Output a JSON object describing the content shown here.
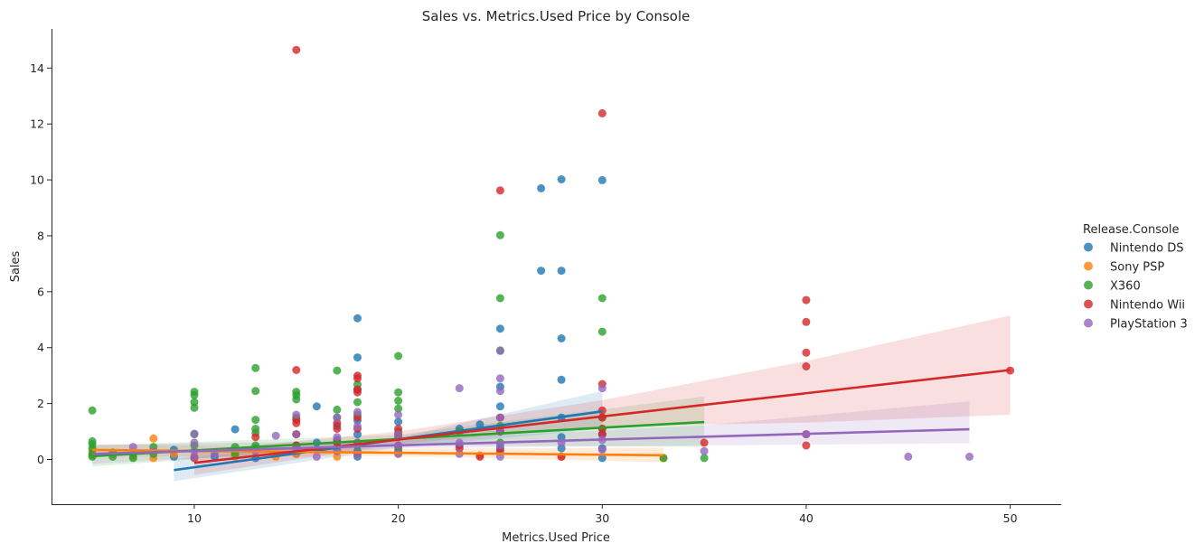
{
  "chart_data": {
    "type": "scatter",
    "title": "Sales vs. Metrics.Used Price by Console",
    "xlabel": "Metrics.Used Price",
    "ylabel": "Sales",
    "xlim": [
      3,
      52.5
    ],
    "ylim": [
      -1.6,
      15.4
    ],
    "xticks": [
      10,
      20,
      30,
      40,
      50
    ],
    "yticks": [
      0,
      2,
      4,
      6,
      8,
      10,
      12,
      14
    ],
    "grid": false,
    "legend": {
      "title": "Release.Console",
      "position": "right"
    },
    "series": [
      {
        "name": "Nintendo DS",
        "color": "#1f77b4",
        "points": [
          [
            9,
            0.35
          ],
          [
            9,
            0.1
          ],
          [
            11,
            0.1
          ],
          [
            12,
            1.08
          ],
          [
            12,
            0.3
          ],
          [
            13,
            0.05
          ],
          [
            13,
            0.4
          ],
          [
            15,
            0.2
          ],
          [
            15,
            0.5
          ],
          [
            16,
            1.9
          ],
          [
            16,
            0.6
          ],
          [
            17,
            0.3
          ],
          [
            17,
            0.7
          ],
          [
            17,
            1.2
          ],
          [
            18,
            5.05
          ],
          [
            18,
            3.65
          ],
          [
            18,
            2.5
          ],
          [
            18,
            1.4
          ],
          [
            18,
            0.9
          ],
          [
            18,
            0.3
          ],
          [
            18,
            0.1
          ],
          [
            20,
            1.35
          ],
          [
            20,
            0.8
          ],
          [
            20,
            0.3
          ],
          [
            23,
            1.1
          ],
          [
            23,
            0.5
          ],
          [
            24,
            1.25
          ],
          [
            25,
            4.68
          ],
          [
            25,
            2.6
          ],
          [
            25,
            1.9
          ],
          [
            25,
            1.0
          ],
          [
            25,
            0.4
          ],
          [
            27,
            9.7
          ],
          [
            27,
            6.75
          ],
          [
            28,
            10.02
          ],
          [
            28,
            6.75
          ],
          [
            28,
            4.33
          ],
          [
            28,
            2.85
          ],
          [
            28,
            1.5
          ],
          [
            28,
            0.8
          ],
          [
            28,
            0.4
          ],
          [
            30,
            9.99
          ],
          [
            30,
            0.9
          ],
          [
            30,
            0.4
          ],
          [
            30,
            0.05
          ]
        ],
        "fit": {
          "x": [
            9,
            30
          ],
          "y": [
            -0.38,
            1.72
          ]
        },
        "ci_band": {
          "x": [
            9,
            20,
            30
          ],
          "lower": [
            -0.78,
            0.42,
            1.1
          ],
          "upper": [
            0.02,
            0.78,
            2.45
          ]
        }
      },
      {
        "name": "Sony PSP",
        "color": "#ff7f0e",
        "points": [
          [
            5,
            0.3
          ],
          [
            5,
            0.15
          ],
          [
            6,
            0.2
          ],
          [
            7,
            0.1
          ],
          [
            8,
            0.75
          ],
          [
            8,
            0.3
          ],
          [
            8,
            0.05
          ],
          [
            9,
            0.2
          ],
          [
            10,
            0.1
          ],
          [
            12,
            0.1
          ],
          [
            14,
            0.1
          ],
          [
            15,
            0.2
          ],
          [
            17,
            0.1
          ],
          [
            20,
            0.2
          ],
          [
            24,
            0.15
          ],
          [
            28,
            0.1
          ],
          [
            33,
            0.05
          ]
        ],
        "fit": {
          "x": [
            5,
            33
          ],
          "y": [
            0.34,
            0.15
          ]
        },
        "ci_band": {
          "x": [
            5,
            20,
            33
          ],
          "lower": [
            0.1,
            0.12,
            -0.1
          ],
          "upper": [
            0.55,
            0.38,
            0.42
          ]
        }
      },
      {
        "name": "X360",
        "color": "#2ca02c",
        "points": [
          [
            5,
            1.75
          ],
          [
            5,
            0.65
          ],
          [
            5,
            0.55
          ],
          [
            5,
            0.4
          ],
          [
            5,
            0.2
          ],
          [
            5,
            0.1
          ],
          [
            6,
            0.25
          ],
          [
            6,
            0.1
          ],
          [
            7,
            0.05
          ],
          [
            7,
            0.2
          ],
          [
            8,
            0.45
          ],
          [
            8,
            0.2
          ],
          [
            10,
            2.42
          ],
          [
            10,
            2.3
          ],
          [
            10,
            2.05
          ],
          [
            10,
            1.85
          ],
          [
            10,
            0.9
          ],
          [
            10,
            0.5
          ],
          [
            12,
            0.45
          ],
          [
            12,
            0.2
          ],
          [
            13,
            3.27
          ],
          [
            13,
            2.45
          ],
          [
            13,
            1.42
          ],
          [
            13,
            1.1
          ],
          [
            13,
            0.95
          ],
          [
            13,
            0.5
          ],
          [
            15,
            2.42
          ],
          [
            15,
            2.3
          ],
          [
            15,
            2.15
          ],
          [
            15,
            1.5
          ],
          [
            15,
            0.9
          ],
          [
            17,
            3.18
          ],
          [
            17,
            1.78
          ],
          [
            17,
            1.5
          ],
          [
            17,
            0.6
          ],
          [
            18,
            2.68
          ],
          [
            18,
            2.05
          ],
          [
            18,
            1.6
          ],
          [
            18,
            0.5
          ],
          [
            20,
            3.7
          ],
          [
            20,
            2.4
          ],
          [
            20,
            2.1
          ],
          [
            20,
            1.82
          ],
          [
            20,
            1.0
          ],
          [
            20,
            0.4
          ],
          [
            23,
            1.0
          ],
          [
            25,
            8.02
          ],
          [
            25,
            5.77
          ],
          [
            25,
            3.9
          ],
          [
            25,
            1.2
          ],
          [
            25,
            0.6
          ],
          [
            30,
            5.77
          ],
          [
            30,
            4.57
          ],
          [
            30,
            1.5
          ],
          [
            30,
            1.1
          ],
          [
            33,
            0.05
          ],
          [
            35,
            0.05
          ]
        ],
        "fit": {
          "x": [
            5,
            35
          ],
          "y": [
            0.12,
            1.34
          ]
        },
        "ci_band": {
          "x": [
            5,
            20,
            35
          ],
          "lower": [
            -0.25,
            0.52,
            0.45
          ],
          "upper": [
            0.5,
            0.88,
            2.25
          ]
        }
      },
      {
        "name": "Nintendo Wii",
        "color": "#d62728",
        "points": [
          [
            10,
            0.05
          ],
          [
            13,
            0.8
          ],
          [
            15,
            14.65
          ],
          [
            15,
            3.2
          ],
          [
            15,
            1.42
          ],
          [
            15,
            1.3
          ],
          [
            15,
            0.9
          ],
          [
            15,
            0.5
          ],
          [
            17,
            1.3
          ],
          [
            17,
            1.1
          ],
          [
            17,
            0.6
          ],
          [
            18,
            3.0
          ],
          [
            18,
            2.9
          ],
          [
            18,
            2.5
          ],
          [
            18,
            2.4
          ],
          [
            18,
            1.5
          ],
          [
            18,
            1.1
          ],
          [
            18,
            0.6
          ],
          [
            18,
            0.2
          ],
          [
            20,
            1.1
          ],
          [
            20,
            0.9
          ],
          [
            20,
            0.5
          ],
          [
            23,
            0.4
          ],
          [
            24,
            0.1
          ],
          [
            25,
            9.62
          ],
          [
            25,
            1.5
          ],
          [
            25,
            1.0
          ],
          [
            25,
            0.3
          ],
          [
            28,
            0.1
          ],
          [
            30,
            12.38
          ],
          [
            30,
            2.7
          ],
          [
            30,
            1.75
          ],
          [
            30,
            1.5
          ],
          [
            30,
            1.1
          ],
          [
            30,
            0.9
          ],
          [
            35,
            0.6
          ],
          [
            40,
            5.7
          ],
          [
            40,
            4.92
          ],
          [
            40,
            3.82
          ],
          [
            40,
            3.33
          ],
          [
            40,
            0.9
          ],
          [
            40,
            0.5
          ],
          [
            50,
            3.18
          ]
        ],
        "fit": {
          "x": [
            10,
            50
          ],
          "y": [
            -0.12,
            3.2
          ]
        },
        "ci_band": {
          "x": [
            10,
            20,
            30,
            40,
            50
          ],
          "lower": [
            -0.55,
            0.55,
            1.18,
            1.32,
            1.6
          ],
          "upper": [
            0.3,
            1.0,
            2.12,
            3.52,
            5.15
          ]
        }
      },
      {
        "name": "PlayStation 3",
        "color": "#9467bd",
        "points": [
          [
            7,
            0.45
          ],
          [
            8,
            0.3
          ],
          [
            10,
            0.92
          ],
          [
            10,
            0.6
          ],
          [
            10,
            0.3
          ],
          [
            10,
            0.1
          ],
          [
            11,
            0.2
          ],
          [
            13,
            0.3
          ],
          [
            14,
            0.85
          ],
          [
            15,
            1.6
          ],
          [
            15,
            0.9
          ],
          [
            15,
            0.4
          ],
          [
            16,
            0.1
          ],
          [
            17,
            1.5
          ],
          [
            17,
            0.8
          ],
          [
            17,
            0.3
          ],
          [
            18,
            1.7
          ],
          [
            18,
            1.2
          ],
          [
            18,
            0.6
          ],
          [
            18,
            0.2
          ],
          [
            20,
            1.6
          ],
          [
            20,
            0.9
          ],
          [
            20,
            0.5
          ],
          [
            20,
            0.2
          ],
          [
            23,
            2.55
          ],
          [
            23,
            0.6
          ],
          [
            23,
            0.2
          ],
          [
            25,
            3.88
          ],
          [
            25,
            2.9
          ],
          [
            25,
            2.45
          ],
          [
            25,
            1.5
          ],
          [
            25,
            1.0
          ],
          [
            25,
            0.5
          ],
          [
            25,
            0.1
          ],
          [
            28,
            0.6
          ],
          [
            30,
            2.55
          ],
          [
            30,
            0.7
          ],
          [
            30,
            0.35
          ],
          [
            35,
            0.3
          ],
          [
            40,
            0.9
          ],
          [
            45,
            0.1
          ],
          [
            48,
            0.1
          ]
        ],
        "fit": {
          "x": [
            5,
            48
          ],
          "y": [
            0.2,
            1.08
          ]
        },
        "ci_band": {
          "x": [
            5,
            20,
            35,
            48
          ],
          "lower": [
            -0.15,
            0.4,
            0.5,
            0.58
          ],
          "upper": [
            0.52,
            0.68,
            1.22,
            2.08
          ]
        }
      }
    ]
  }
}
